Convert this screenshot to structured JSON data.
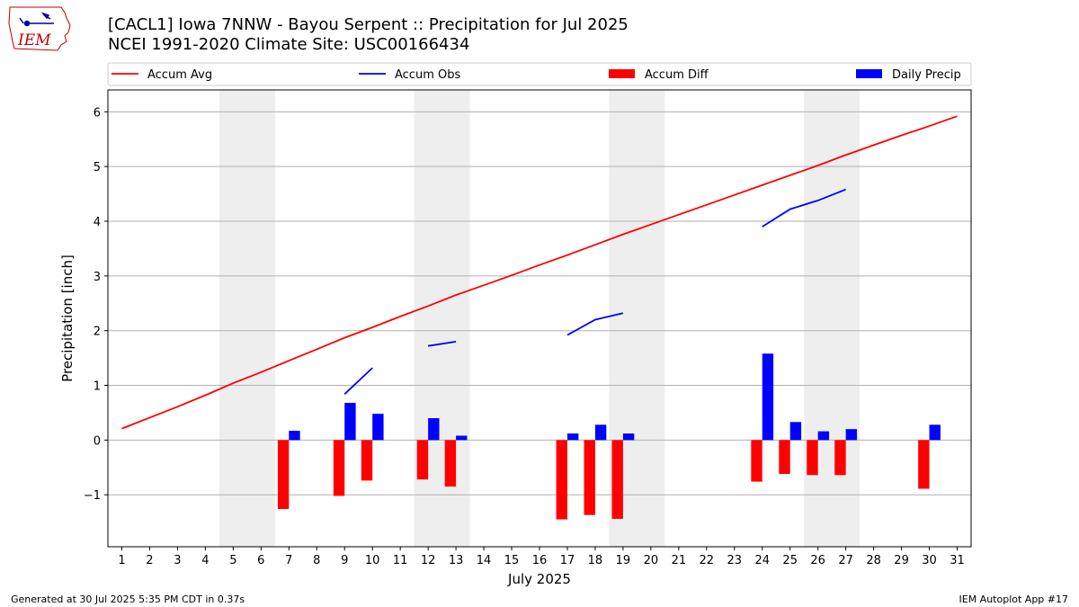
{
  "logo": {
    "text": "IEM"
  },
  "header": {
    "title": "[CACL1] Iowa 7NNW - Bayou Serpent :: Precipitation for Jul 2025",
    "subtitle": "NCEI 1991-2020 Climate Site: USC00166434"
  },
  "footer": {
    "left": "Generated at 30 Jul 2025 5:35 PM CDT in 0.37s",
    "right": "IEM Autoplot App #17"
  },
  "chart_data": {
    "type": "bar",
    "xlabel": "July 2025",
    "ylabel": "Precipitation [inch]",
    "xlim": [
      0.5,
      31.5
    ],
    "ylim": [
      -1.95,
      6.4
    ],
    "yticks": [
      -1,
      0,
      1,
      2,
      3,
      4,
      5,
      6
    ],
    "ytick_labels": [
      "−1",
      "0",
      "1",
      "2",
      "3",
      "4",
      "5",
      "6"
    ],
    "x": [
      1,
      2,
      3,
      4,
      5,
      6,
      7,
      8,
      9,
      10,
      11,
      12,
      13,
      14,
      15,
      16,
      17,
      18,
      19,
      20,
      21,
      22,
      23,
      24,
      25,
      26,
      27,
      28,
      29,
      30,
      31
    ],
    "grid": "horizontal",
    "legend_position": "top",
    "weekend_shading": [
      [
        4.5,
        6.5
      ],
      [
        11.5,
        13.5
      ],
      [
        18.5,
        20.5
      ],
      [
        25.5,
        27.5
      ]
    ],
    "weekend_color": "#eeeeee",
    "series": [
      {
        "name": "Accum Avg",
        "kind": "line",
        "color": "#ff0000",
        "values": [
          0.21,
          0.41,
          0.61,
          0.82,
          1.04,
          1.24,
          1.45,
          1.66,
          1.87,
          2.06,
          2.26,
          2.45,
          2.65,
          2.83,
          3.01,
          3.2,
          3.38,
          3.57,
          3.76,
          3.94,
          4.12,
          4.3,
          4.48,
          4.66,
          4.84,
          5.02,
          5.21,
          5.39,
          5.57,
          5.74,
          5.92
        ]
      },
      {
        "name": "Accum Obs",
        "kind": "line",
        "color": "#0000ff",
        "values": [
          null,
          null,
          null,
          null,
          null,
          null,
          null,
          null,
          0.84,
          1.32,
          null,
          1.72,
          1.8,
          null,
          null,
          null,
          1.92,
          2.2,
          2.32,
          null,
          null,
          null,
          null,
          3.9,
          4.22,
          4.38,
          4.58,
          null,
          null,
          null,
          null
        ]
      },
      {
        "name": "Accum Diff",
        "kind": "bar",
        "color": "#ff0000",
        "offset": -0.2,
        "values": [
          null,
          null,
          null,
          null,
          null,
          null,
          -1.26,
          null,
          -1.02,
          -0.74,
          null,
          -0.72,
          -0.85,
          null,
          null,
          null,
          -1.45,
          -1.37,
          -1.44,
          null,
          null,
          null,
          null,
          -0.76,
          -0.62,
          -0.64,
          -0.64,
          null,
          null,
          -0.89,
          null
        ]
      },
      {
        "name": "Daily Precip",
        "kind": "bar",
        "color": "#0000ff",
        "offset": 0.2,
        "values": [
          null,
          null,
          null,
          null,
          null,
          null,
          0.17,
          null,
          0.68,
          0.48,
          null,
          0.4,
          0.08,
          null,
          null,
          null,
          0.12,
          0.28,
          0.12,
          null,
          null,
          null,
          null,
          1.58,
          0.33,
          0.16,
          0.2,
          null,
          null,
          0.28,
          null
        ]
      }
    ]
  }
}
